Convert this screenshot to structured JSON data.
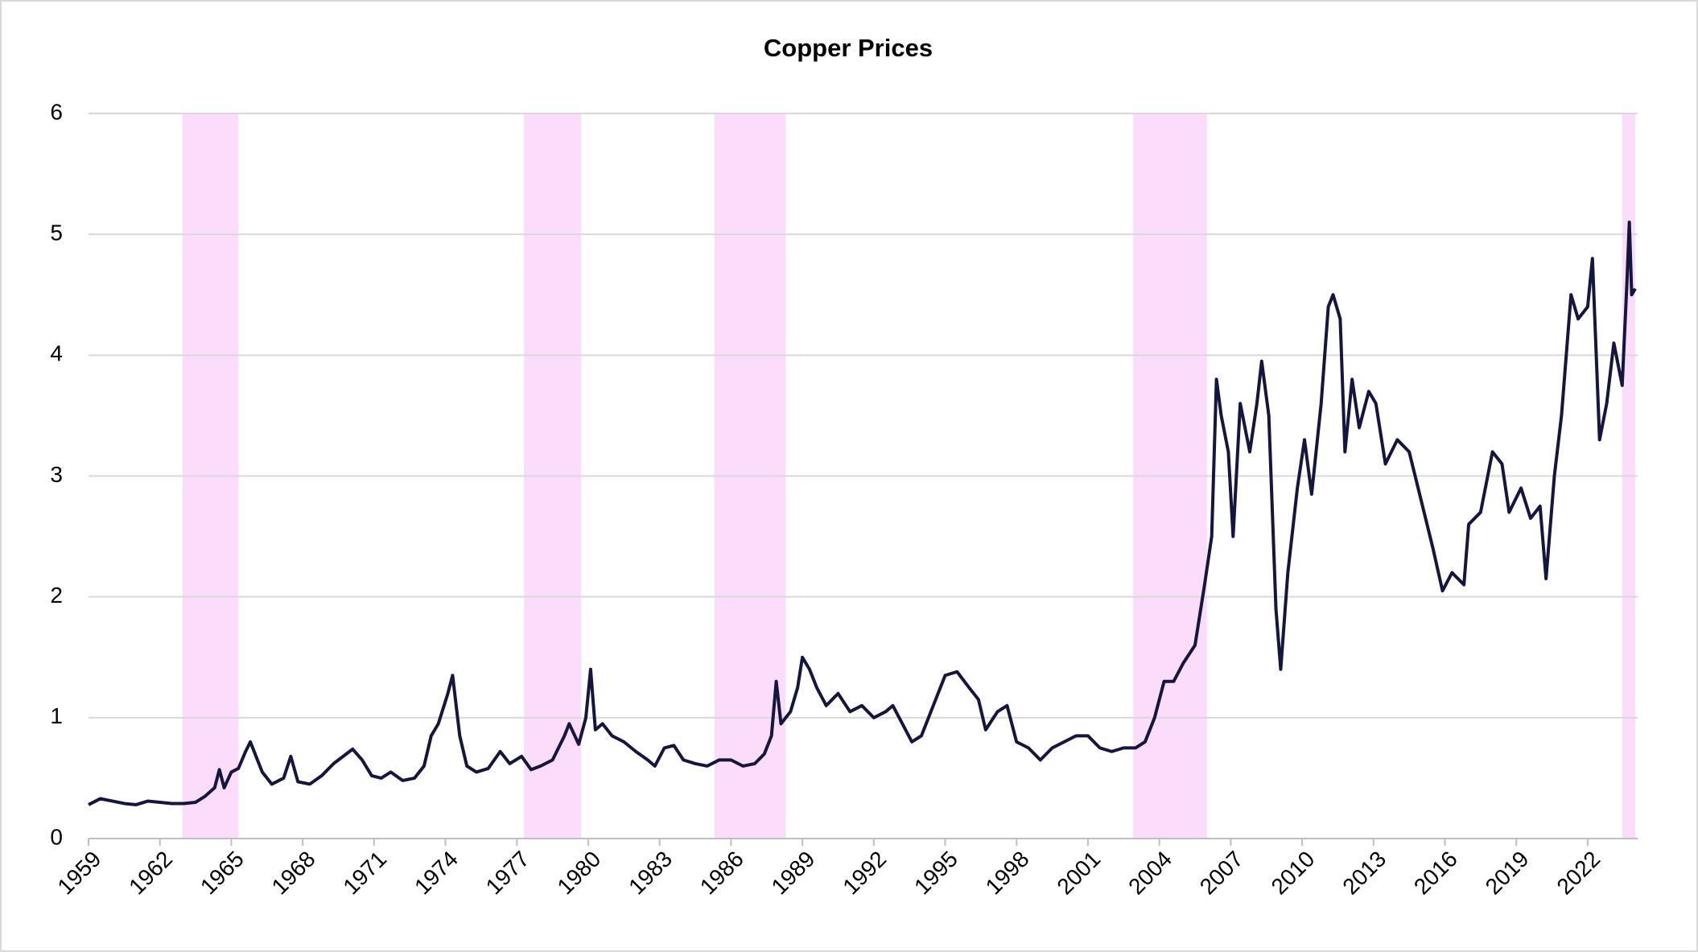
{
  "chart_data": {
    "type": "line",
    "title": "Copper Prices",
    "xlim": [
      1959,
      2024.1
    ],
    "xticks": [
      1959,
      1962,
      1965,
      1968,
      1971,
      1974,
      1977,
      1980,
      1983,
      1986,
      1989,
      1992,
      1995,
      1998,
      2001,
      2004,
      2007,
      2010,
      2013,
      2016,
      2019,
      2022
    ],
    "ylim": [
      0,
      6
    ],
    "yticks": [
      0,
      1,
      2,
      3,
      4,
      5,
      6
    ],
    "grid": true,
    "shaded_ranges": [
      [
        1962.95,
        1965.3
      ],
      [
        1977.3,
        1979.7
      ],
      [
        1985.3,
        1988.3
      ],
      [
        2002.9,
        2006.0
      ],
      [
        2023.45,
        2024.0
      ]
    ],
    "shade_color": "#fbdcfb",
    "x": [
      1959,
      1959.5,
      1960,
      1960.5,
      1961,
      1961.5,
      1962,
      1962.5,
      1963,
      1963.5,
      1963.9,
      1964.3,
      1964.5,
      1964.7,
      1965,
      1965.3,
      1965.6,
      1965.8,
      1966,
      1966.3,
      1966.7,
      1967.2,
      1967.5,
      1967.8,
      1968.3,
      1968.8,
      1969.3,
      1969.7,
      1970.1,
      1970.5,
      1970.9,
      1971.3,
      1971.7,
      1972.2,
      1972.7,
      1973.1,
      1973.4,
      1973.7,
      1974.1,
      1974.3,
      1974.6,
      1974.9,
      1975.3,
      1975.8,
      1976.3,
      1976.7,
      1977.2,
      1977.6,
      1978,
      1978.5,
      1979,
      1979.2,
      1979.6,
      1979.9,
      1980.1,
      1980.3,
      1980.6,
      1981,
      1981.5,
      1982,
      1982.5,
      1982.8,
      1983.2,
      1983.6,
      1984,
      1984.5,
      1985,
      1985.5,
      1986,
      1986.5,
      1987,
      1987.4,
      1987.7,
      1987.9,
      1988.1,
      1988.5,
      1988.8,
      1989,
      1989.3,
      1989.6,
      1990,
      1990.5,
      1991,
      1991.5,
      1992,
      1992.5,
      1992.8,
      1993.2,
      1993.6,
      1994,
      1994.5,
      1995,
      1995.5,
      1996,
      1996.4,
      1996.7,
      1997.2,
      1997.6,
      1998,
      1998.5,
      1999,
      1999.5,
      2000,
      2000.5,
      2001,
      2001.5,
      2002,
      2002.5,
      2003,
      2003.4,
      2003.8,
      2004.2,
      2004.6,
      2005,
      2005.5,
      2005.9,
      2006.2,
      2006.4,
      2006.6,
      2006.9,
      2007.1,
      2007.4,
      2007.8,
      2008.1,
      2008.3,
      2008.6,
      2008.9,
      2009.1,
      2009.4,
      2009.8,
      2010.1,
      2010.4,
      2010.8,
      2011.1,
      2011.3,
      2011.6,
      2011.8,
      2012.1,
      2012.4,
      2012.8,
      2013.1,
      2013.5,
      2014,
      2014.5,
      2015,
      2015.5,
      2015.9,
      2016.3,
      2016.8,
      2017,
      2017.5,
      2018,
      2018.4,
      2018.7,
      2019.2,
      2019.6,
      2020,
      2020.25,
      2020.6,
      2020.9,
      2021.3,
      2021.6,
      2022,
      2022.2,
      2022.5,
      2022.8,
      2023.1,
      2023.45,
      2023.65,
      2023.75,
      2023.85,
      2024.0
    ],
    "series": [
      {
        "color": "#14163f",
        "values": [
          0.28,
          0.33,
          0.31,
          0.29,
          0.28,
          0.31,
          0.3,
          0.29,
          0.29,
          0.3,
          0.35,
          0.42,
          0.57,
          0.42,
          0.55,
          0.58,
          0.72,
          0.8,
          0.7,
          0.55,
          0.45,
          0.5,
          0.68,
          0.47,
          0.45,
          0.52,
          0.62,
          0.68,
          0.74,
          0.65,
          0.52,
          0.5,
          0.55,
          0.48,
          0.5,
          0.6,
          0.85,
          0.95,
          1.2,
          1.35,
          0.85,
          0.6,
          0.55,
          0.58,
          0.72,
          0.62,
          0.68,
          0.57,
          0.6,
          0.65,
          0.85,
          0.95,
          0.78,
          1.0,
          1.4,
          0.9,
          0.95,
          0.85,
          0.8,
          0.72,
          0.65,
          0.6,
          0.75,
          0.77,
          0.65,
          0.62,
          0.6,
          0.65,
          0.65,
          0.6,
          0.62,
          0.7,
          0.85,
          1.3,
          0.95,
          1.05,
          1.25,
          1.5,
          1.4,
          1.25,
          1.1,
          1.2,
          1.05,
          1.1,
          1.0,
          1.05,
          1.1,
          0.95,
          0.8,
          0.85,
          1.1,
          1.35,
          1.38,
          1.25,
          1.15,
          0.9,
          1.05,
          1.1,
          0.8,
          0.75,
          0.65,
          0.75,
          0.8,
          0.85,
          0.85,
          0.75,
          0.72,
          0.75,
          0.75,
          0.8,
          1.0,
          1.3,
          1.3,
          1.45,
          1.6,
          2.1,
          2.5,
          3.8,
          3.5,
          3.2,
          2.5,
          3.6,
          3.2,
          3.6,
          3.95,
          3.5,
          1.9,
          1.4,
          2.2,
          2.9,
          3.3,
          2.85,
          3.6,
          4.4,
          4.5,
          4.3,
          3.2,
          3.8,
          3.4,
          3.7,
          3.6,
          3.1,
          3.3,
          3.2,
          2.8,
          2.4,
          2.05,
          2.2,
          2.1,
          2.6,
          2.7,
          3.2,
          3.1,
          2.7,
          2.9,
          2.65,
          2.75,
          2.15,
          3.0,
          3.5,
          4.5,
          4.3,
          4.4,
          4.8,
          3.3,
          3.6,
          4.1,
          3.75,
          4.6,
          5.1,
          4.5,
          4.55
        ]
      }
    ]
  }
}
